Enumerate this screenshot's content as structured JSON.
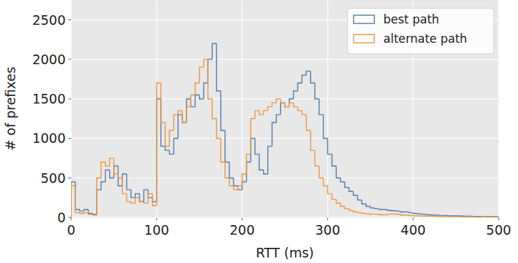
{
  "chart_data": {
    "type": "histogram",
    "x_label": "RTT (ms)",
    "y_label": "# of prefixes",
    "bins": [
      0,
      5,
      10,
      15,
      20,
      25,
      30,
      35,
      40,
      45,
      50,
      55,
      60,
      65,
      70,
      75,
      80,
      85,
      90,
      95,
      100,
      105,
      110,
      115,
      120,
      125,
      130,
      135,
      140,
      145,
      150,
      155,
      160,
      165,
      170,
      175,
      180,
      185,
      190,
      195,
      200,
      205,
      210,
      215,
      220,
      225,
      230,
      235,
      240,
      245,
      250,
      255,
      260,
      265,
      270,
      275,
      280,
      285,
      290,
      295,
      300,
      305,
      310,
      315,
      320,
      325,
      330,
      335,
      340,
      345,
      350,
      355,
      360,
      365,
      370,
      375,
      380,
      385,
      390,
      395,
      400,
      405,
      410,
      415,
      420,
      425,
      430,
      435,
      440,
      445,
      450,
      455,
      460,
      465,
      470,
      475,
      480,
      485,
      490,
      495,
      500
    ],
    "series": [
      {
        "name": "best path",
        "color": "#4d78a8",
        "values": [
          450,
          100,
          80,
          100,
          50,
          40,
          350,
          450,
          600,
          500,
          650,
          400,
          550,
          350,
          250,
          300,
          200,
          350,
          250,
          200,
          1500,
          900,
          850,
          800,
          1000,
          1300,
          1200,
          1500,
          1400,
          1550,
          1500,
          1700,
          2000,
          2200,
          1600,
          1100,
          700,
          500,
          400,
          350,
          450,
          700,
          1000,
          800,
          600,
          550,
          900,
          1200,
          1300,
          1450,
          1400,
          1500,
          1600,
          1700,
          1800,
          1850,
          1700,
          1500,
          1300,
          1000,
          800,
          650,
          500,
          450,
          380,
          330,
          280,
          220,
          170,
          140,
          120,
          110,
          100,
          100,
          90,
          85,
          80,
          70,
          70,
          60,
          50,
          45,
          40,
          35,
          30,
          30,
          25,
          25,
          20,
          20,
          20,
          18,
          15,
          15,
          12,
          12,
          10,
          10,
          10,
          10
        ]
      },
      {
        "name": "alternate path",
        "color": "#ee9238",
        "values": [
          400,
          60,
          50,
          60,
          40,
          30,
          500,
          700,
          650,
          750,
          550,
          500,
          300,
          200,
          180,
          250,
          200,
          180,
          300,
          150,
          1700,
          1200,
          900,
          1100,
          1300,
          1350,
          1200,
          1400,
          1550,
          1700,
          1900,
          2000,
          1500,
          1250,
          1000,
          700,
          500,
          400,
          350,
          400,
          550,
          800,
          1250,
          1350,
          1300,
          1350,
          1400,
          1450,
          1500,
          1450,
          1400,
          1450,
          1400,
          1350,
          1300,
          1100,
          850,
          650,
          500,
          400,
          300,
          230,
          180,
          140,
          110,
          90,
          70,
          60,
          50,
          45,
          40,
          40,
          35,
          35,
          40,
          45,
          40,
          30,
          30,
          25,
          20,
          20,
          18,
          15,
          15,
          12,
          12,
          10,
          10,
          10,
          10,
          8,
          8,
          8,
          6,
          6,
          6,
          5,
          5,
          5
        ]
      }
    ],
    "xlim": [
      0,
      500
    ],
    "ylim": [
      0,
      2750
    ],
    "xticks": [
      0,
      100,
      200,
      300,
      400,
      500
    ],
    "yticks": [
      0,
      500,
      1000,
      1500,
      2000,
      2500
    ],
    "grid": true,
    "legend": "upper right"
  }
}
